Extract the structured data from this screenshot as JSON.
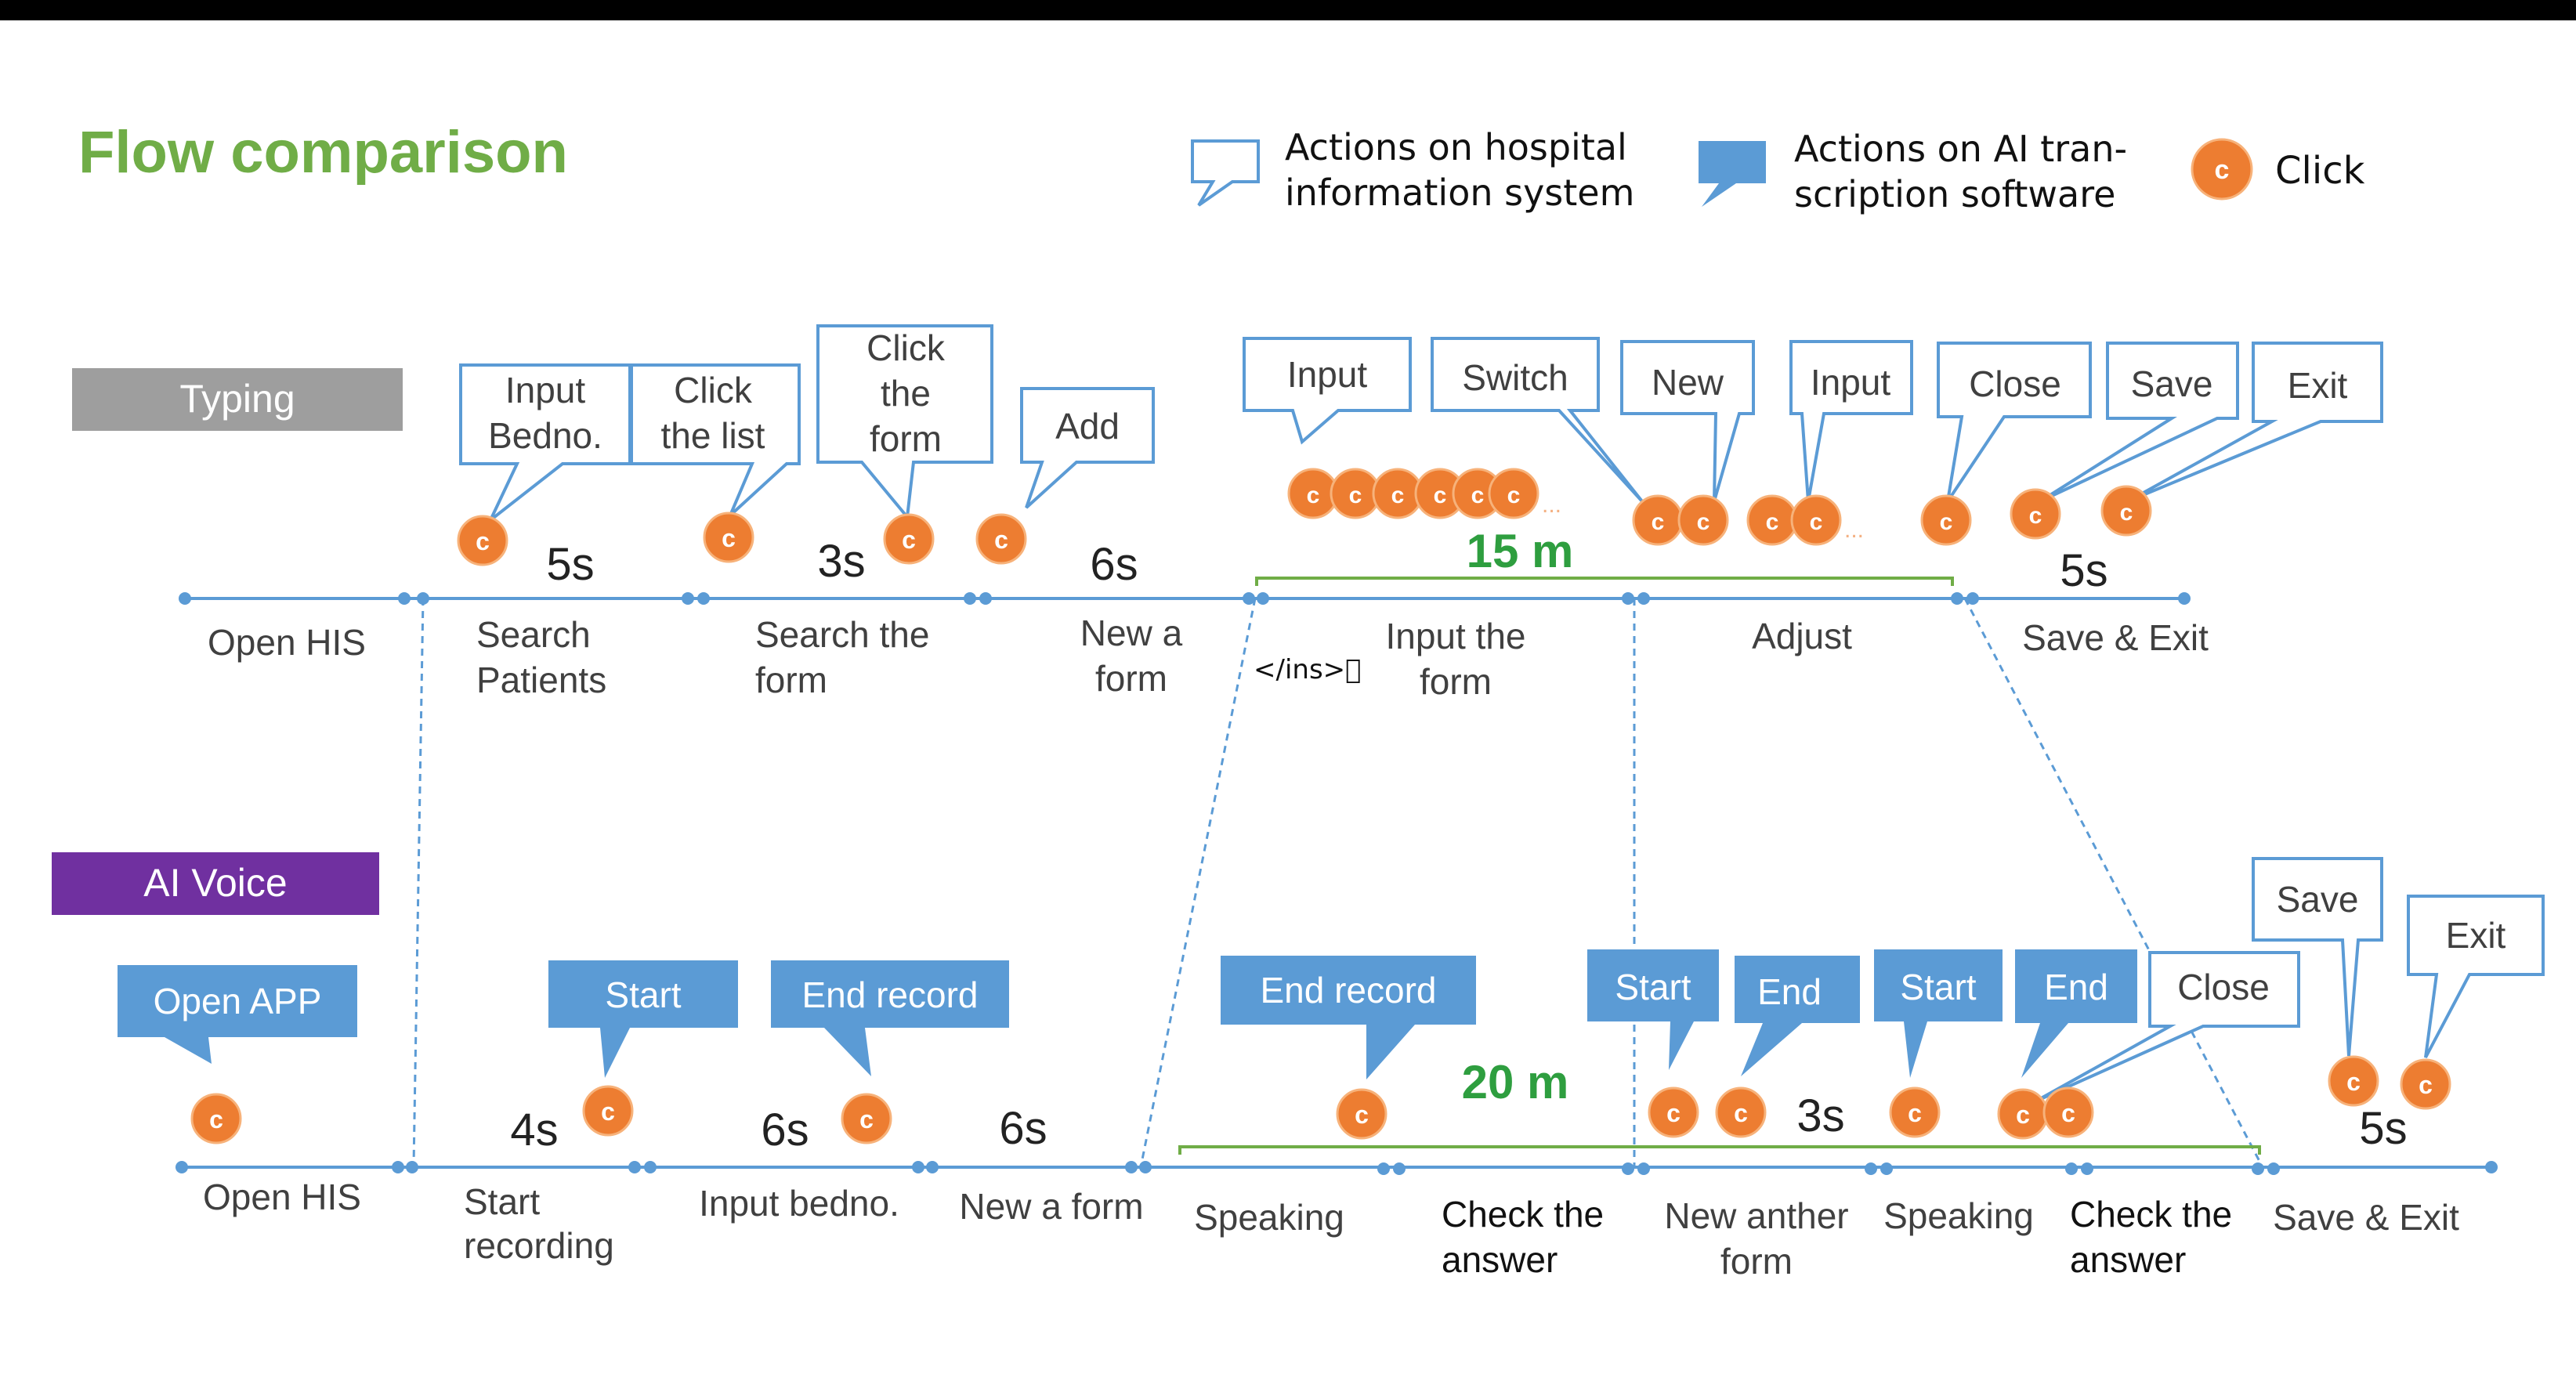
{
  "title": "Flow comparison",
  "legend": {
    "his_line1": "Actions on hospital",
    "his_line2": "information system",
    "ai_line1": "Actions on AI tran-",
    "ai_line2": "scription software",
    "click": "Click"
  },
  "click_letter": "c",
  "lanes": {
    "typing": "Typing",
    "ai_voice": "AI Voice"
  },
  "artifact": "</ins>\u0000",
  "colors": {
    "timeline": "#5b9bd5",
    "his_border": "#5b9bd5",
    "ai_fill": "#5b9bd5",
    "click": "#ed7d31",
    "typing_lane": "#9e9e9e",
    "ai_lane": "#7030a0",
    "title": "#70ad47",
    "duration_green": "#2e9e3f",
    "bracket_green": "#70ad47"
  },
  "typing": {
    "steps": [
      [
        "Open HIS"
      ],
      [
        "Search",
        "Patients"
      ],
      [
        "Search the",
        "form"
      ],
      [
        "New a",
        "form"
      ],
      [
        "Input the",
        "form"
      ],
      [
        "Adjust"
      ],
      [
        "Save & Exit"
      ]
    ],
    "bubbles": [
      [
        "Input",
        "Bedno."
      ],
      [
        "Click",
        "the list"
      ],
      [
        "Click",
        "the",
        "form"
      ],
      [
        "Add"
      ],
      [
        "Input"
      ],
      [
        "Switch"
      ],
      [
        "New"
      ],
      [
        "Input"
      ],
      [
        "Close"
      ],
      [
        "Save"
      ],
      [
        "Exit"
      ]
    ],
    "durations": [
      "5s",
      "3s",
      "6s",
      "15 m",
      "5s"
    ]
  },
  "ai": {
    "steps": [
      [
        "Open HIS"
      ],
      [
        "Start",
        "recording"
      ],
      [
        "Input bedno."
      ],
      [
        "New a form"
      ],
      [
        "Speaking"
      ],
      [
        "Check the",
        "answer"
      ],
      [
        "New anther",
        "form"
      ],
      [
        "Speaking"
      ],
      [
        "Check the",
        "answer"
      ],
      [
        "Save & Exit"
      ]
    ],
    "ai_bubbles": [
      "Open APP",
      "Start",
      "End record",
      "End record",
      "Start",
      "End",
      "Start",
      "End"
    ],
    "his_bubbles": [
      "Close",
      "Save",
      "Exit"
    ],
    "durations": [
      "4s",
      "6s",
      "6s",
      "20 m",
      "3s",
      "5s"
    ]
  }
}
